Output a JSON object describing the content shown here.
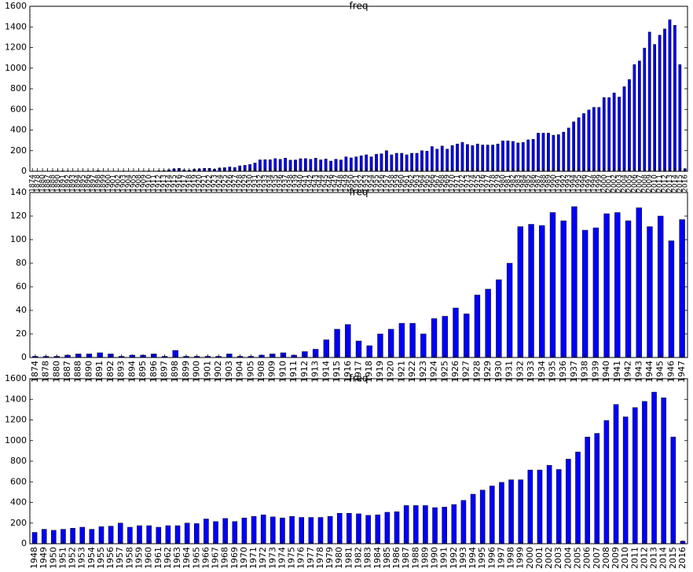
{
  "chart_data": [
    {
      "type": "bar",
      "title": "freq",
      "color": "#0000ff",
      "categories": [
        "1874",
        "1878",
        "1880",
        "1887",
        "1888",
        "1890",
        "1891",
        "1892",
        "1893",
        "1894",
        "1895",
        "1896",
        "1897",
        "1898",
        "1899",
        "1900",
        "1901",
        "1902",
        "1903",
        "1904",
        "1905",
        "1908",
        "1909",
        "1910",
        "1911",
        "1912",
        "1913",
        "1914",
        "1915",
        "1916",
        "1917",
        "1918",
        "1919",
        "1920",
        "1921",
        "1922",
        "1923",
        "1924",
        "1925",
        "1926",
        "1927",
        "1928",
        "1929",
        "1930",
        "1931",
        "1932",
        "1933",
        "1934",
        "1935",
        "1936",
        "1937",
        "1938",
        "1939",
        "1940",
        "1941",
        "1942",
        "1943",
        "1944",
        "1945",
        "1946",
        "1947",
        "1948",
        "1949",
        "1950",
        "1951",
        "1952",
        "1953",
        "1954",
        "1955",
        "1956",
        "1957",
        "1958",
        "1959",
        "1960",
        "1961",
        "1962",
        "1963",
        "1964",
        "1965",
        "1966",
        "1967",
        "1968",
        "1969",
        "1970",
        "1971",
        "1972",
        "1973",
        "1974",
        "1975",
        "1976",
        "1977",
        "1978",
        "1979",
        "1980",
        "1981",
        "1982",
        "1983",
        "1984",
        "1985",
        "1986",
        "1987",
        "1988",
        "1989",
        "1990",
        "1991",
        "1992",
        "1993",
        "1994",
        "1995",
        "1996",
        "1997",
        "1998",
        "1999",
        "2000",
        "2001",
        "2002",
        "2003",
        "2004",
        "2005",
        "2006",
        "2007",
        "2008",
        "2009",
        "2010",
        "2011",
        "2012",
        "2013",
        "2014",
        "2015",
        "2016"
      ],
      "values": [
        1,
        1,
        1,
        2,
        3,
        3,
        4,
        3,
        1,
        2,
        2,
        3,
        1,
        6,
        1,
        1,
        1,
        1,
        3,
        1,
        1,
        2,
        3,
        4,
        2,
        5,
        7,
        15,
        24,
        28,
        14,
        10,
        20,
        24,
        29,
        29,
        20,
        33,
        35,
        42,
        37,
        53,
        58,
        66,
        80,
        111,
        113,
        112,
        123,
        116,
        128,
        108,
        110,
        122,
        123,
        116,
        127,
        111,
        120,
        99,
        117,
        110,
        140,
        130,
        140,
        150,
        160,
        140,
        165,
        170,
        200,
        160,
        175,
        175,
        160,
        175,
        175,
        200,
        195,
        240,
        215,
        245,
        215,
        250,
        265,
        280,
        260,
        250,
        265,
        255,
        255,
        255,
        265,
        295,
        295,
        290,
        275,
        280,
        305,
        310,
        370,
        370,
        370,
        350,
        355,
        380,
        420,
        480,
        520,
        560,
        595,
        620,
        620,
        715,
        715,
        760,
        720,
        820,
        890,
        1035,
        1070,
        1195,
        1350,
        1230,
        1320,
        1380,
        1470,
        1415,
        1035,
        25
      ],
      "ylim": [
        0,
        1600
      ],
      "yticks": [
        0,
        200,
        400,
        600,
        800,
        1000,
        1200,
        1400,
        1600
      ]
    },
    {
      "type": "bar",
      "title": "freq",
      "color": "#0000ff",
      "categories": [
        "1874",
        "1878",
        "1880",
        "1887",
        "1888",
        "1890",
        "1891",
        "1892",
        "1893",
        "1894",
        "1895",
        "1896",
        "1897",
        "1898",
        "1899",
        "1900",
        "1901",
        "1902",
        "1903",
        "1904",
        "1905",
        "1908",
        "1909",
        "1910",
        "1911",
        "1912",
        "1913",
        "1914",
        "1915",
        "1916",
        "1917",
        "1918",
        "1919",
        "1920",
        "1921",
        "1922",
        "1923",
        "1924",
        "1925",
        "1926",
        "1927",
        "1928",
        "1929",
        "1930",
        "1931",
        "1932",
        "1933",
        "1934",
        "1935",
        "1936",
        "1937",
        "1938",
        "1939",
        "1940",
        "1941",
        "1942",
        "1943",
        "1944",
        "1945",
        "1946",
        "1947"
      ],
      "values": [
        1,
        1,
        1,
        2,
        3,
        3,
        4,
        3,
        1,
        2,
        2,
        3,
        1,
        6,
        1,
        1,
        1,
        1,
        3,
        1,
        1,
        2,
        3,
        4,
        2,
        5,
        7,
        15,
        24,
        28,
        14,
        10,
        20,
        24,
        29,
        29,
        20,
        33,
        35,
        42,
        37,
        53,
        58,
        66,
        80,
        111,
        113,
        112,
        123,
        116,
        128,
        108,
        110,
        122,
        123,
        116,
        127,
        111,
        120,
        99,
        117
      ],
      "ylim": [
        0,
        140
      ],
      "yticks": [
        0,
        20,
        40,
        60,
        80,
        100,
        120,
        140
      ]
    },
    {
      "type": "bar",
      "title": "freq",
      "color": "#0000ff",
      "categories": [
        "1948",
        "1949",
        "1950",
        "1951",
        "1952",
        "1953",
        "1954",
        "1955",
        "1956",
        "1957",
        "1958",
        "1959",
        "1960",
        "1961",
        "1962",
        "1963",
        "1964",
        "1965",
        "1966",
        "1967",
        "1968",
        "1969",
        "1970",
        "1971",
        "1972",
        "1973",
        "1974",
        "1975",
        "1976",
        "1977",
        "1978",
        "1979",
        "1980",
        "1981",
        "1982",
        "1983",
        "1984",
        "1985",
        "1986",
        "1987",
        "1988",
        "1989",
        "1990",
        "1991",
        "1992",
        "1993",
        "1994",
        "1995",
        "1996",
        "1997",
        "1998",
        "1999",
        "2000",
        "2001",
        "2002",
        "2003",
        "2004",
        "2005",
        "2006",
        "2007",
        "2008",
        "2009",
        "2010",
        "2011",
        "2012",
        "2013",
        "2014",
        "2015",
        "2016"
      ],
      "values": [
        110,
        140,
        130,
        140,
        150,
        160,
        140,
        165,
        170,
        200,
        160,
        175,
        175,
        160,
        175,
        175,
        200,
        195,
        240,
        215,
        245,
        215,
        250,
        265,
        280,
        260,
        250,
        265,
        255,
        255,
        255,
        265,
        295,
        295,
        290,
        275,
        280,
        305,
        310,
        370,
        370,
        370,
        350,
        355,
        380,
        420,
        480,
        520,
        560,
        595,
        620,
        620,
        715,
        715,
        760,
        720,
        820,
        890,
        1035,
        1070,
        1195,
        1350,
        1230,
        1320,
        1380,
        1470,
        1415,
        1035,
        25
      ],
      "ylim": [
        0,
        1600
      ],
      "yticks": [
        0,
        200,
        400,
        600,
        800,
        1000,
        1200,
        1400,
        1600
      ]
    }
  ]
}
